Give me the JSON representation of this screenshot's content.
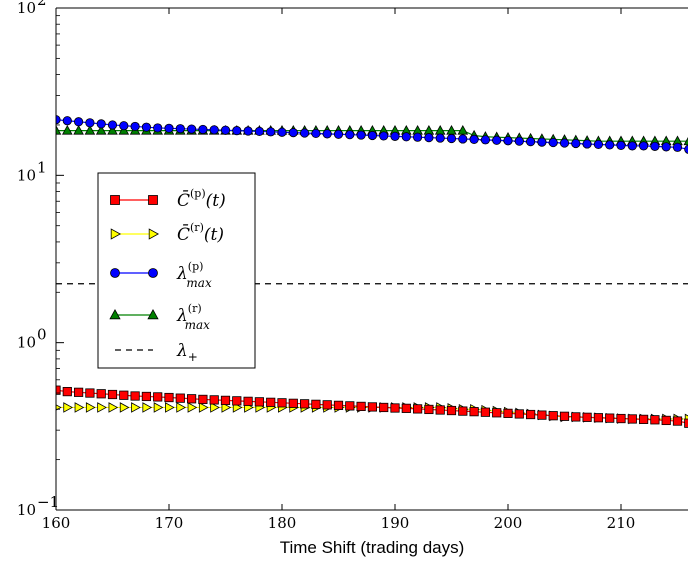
{
  "chart_data": {
    "type": "line",
    "title": "",
    "xlabel": "Time Shift (trading days)",
    "ylabel": "",
    "yscale": "log",
    "xlim": [
      160,
      216
    ],
    "ylim": [
      0.1,
      100
    ],
    "grid": false,
    "legend_position": "center-left",
    "x_ticks": [
      {
        "value": 160,
        "label": "160"
      },
      {
        "value": 170,
        "label": "170"
      },
      {
        "value": 180,
        "label": "180"
      },
      {
        "value": 190,
        "label": "190"
      },
      {
        "value": 200,
        "label": "200"
      },
      {
        "value": 210,
        "label": "210"
      }
    ],
    "y_ticks": [
      {
        "value": 0.1,
        "base": "10",
        "exp": "−1"
      },
      {
        "value": 1,
        "base": "10",
        "exp": "0"
      },
      {
        "value": 10,
        "base": "10",
        "exp": "1"
      },
      {
        "value": 100,
        "base": "10",
        "exp": "2"
      }
    ],
    "x_start": 160,
    "x_step": 1,
    "series": [
      {
        "id": "c_p",
        "legend": {
          "base": "C̄",
          "sup": "(p)",
          "suffix": "(t)"
        },
        "color": "#ff0000",
        "edge": "#000000",
        "marker": "square",
        "values": [
          0.52,
          0.51,
          0.505,
          0.5,
          0.495,
          0.49,
          0.485,
          0.48,
          0.477,
          0.474,
          0.47,
          0.466,
          0.462,
          0.458,
          0.455,
          0.452,
          0.449,
          0.446,
          0.443,
          0.44,
          0.437,
          0.434,
          0.431,
          0.428,
          0.425,
          0.422,
          0.419,
          0.416,
          0.413,
          0.41,
          0.407,
          0.405,
          0.402,
          0.399,
          0.396,
          0.393,
          0.39,
          0.387,
          0.384,
          0.381,
          0.378,
          0.375,
          0.372,
          0.369,
          0.366,
          0.363,
          0.36,
          0.358,
          0.356,
          0.354,
          0.352,
          0.35,
          0.348,
          0.346,
          0.343,
          0.34,
          0.33
        ]
      },
      {
        "id": "c_r",
        "legend": {
          "base": "C̄",
          "sup": "(r)",
          "suffix": "(t)"
        },
        "color": "#ffff00",
        "edge": "#000000",
        "marker": "triangle-right",
        "values": [
          0.41,
          0.41,
          0.41,
          0.41,
          0.41,
          0.41,
          0.41,
          0.41,
          0.41,
          0.41,
          0.41,
          0.41,
          0.41,
          0.41,
          0.41,
          0.41,
          0.41,
          0.41,
          0.41,
          0.41,
          0.41,
          0.41,
          0.41,
          0.41,
          0.41,
          0.41,
          0.41,
          0.41,
          0.41,
          0.41,
          0.41,
          0.41,
          0.41,
          0.41,
          0.41,
          0.405,
          0.4,
          0.4,
          0.395,
          0.39,
          0.385,
          0.38,
          0.375,
          0.37,
          0.365,
          0.36,
          0.36,
          0.358,
          0.356,
          0.354,
          0.352,
          0.35,
          0.35,
          0.35,
          0.35,
          0.35,
          0.35
        ]
      },
      {
        "id": "lambda_p",
        "legend": {
          "base": "λ",
          "sup": "(p)",
          "sub": "max"
        },
        "color": "#0000ff",
        "edge": "#000000",
        "marker": "circle",
        "values": [
          21.5,
          21.2,
          20.9,
          20.6,
          20.3,
          20.0,
          19.8,
          19.6,
          19.4,
          19.2,
          19.1,
          19.0,
          18.9,
          18.8,
          18.7,
          18.6,
          18.5,
          18.4,
          18.3,
          18.2,
          18.1,
          18.0,
          17.9,
          17.8,
          17.7,
          17.6,
          17.5,
          17.4,
          17.3,
          17.2,
          17.1,
          17.0,
          16.9,
          16.8,
          16.7,
          16.6,
          16.5,
          16.4,
          16.3,
          16.2,
          16.1,
          16.0,
          15.9,
          15.8,
          15.7,
          15.6,
          15.5,
          15.4,
          15.3,
          15.2,
          15.1,
          15.0,
          15.0,
          14.9,
          14.8,
          14.7,
          14.3
        ]
      },
      {
        "id": "lambda_r",
        "legend": {
          "base": "λ",
          "sup": "(r)",
          "sub": "max"
        },
        "color": "#008000",
        "edge": "#000000",
        "marker": "triangle-up",
        "values": [
          18.5,
          18.5,
          18.5,
          18.5,
          18.5,
          18.5,
          18.5,
          18.5,
          18.5,
          18.5,
          18.5,
          18.5,
          18.5,
          18.5,
          18.5,
          18.5,
          18.5,
          18.5,
          18.5,
          18.5,
          18.5,
          18.5,
          18.5,
          18.5,
          18.5,
          18.5,
          18.5,
          18.5,
          18.5,
          18.5,
          18.5,
          18.5,
          18.5,
          18.5,
          18.5,
          18.5,
          18.5,
          17.3,
          17.0,
          16.9,
          16.8,
          16.7,
          16.6,
          16.5,
          16.4,
          16.3,
          16.2,
          16.1,
          16.0,
          16.0,
          16.0,
          16.0,
          16.0,
          16.0,
          16.0,
          16.0,
          16.0
        ]
      },
      {
        "id": "lambda_plus",
        "legend": {
          "base": "λ",
          "sub": "+"
        },
        "color": "#000000",
        "marker": "none",
        "dashed": true,
        "constant": 2.25
      }
    ]
  }
}
